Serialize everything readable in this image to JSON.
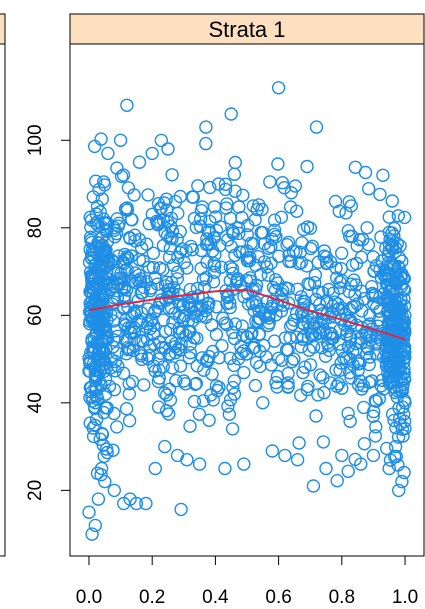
{
  "chart_data": {
    "type": "scatter",
    "panel": {
      "strip_label": "Strata 1",
      "xlim": [
        -0.06,
        1.06
      ],
      "ylim": [
        5,
        122
      ],
      "x_ticks": [
        0.0,
        0.2,
        0.4,
        0.6,
        0.8,
        1.0
      ],
      "x_tick_labels": [
        "0.0",
        "0.2",
        "0.4",
        "0.6",
        "0.8",
        "1.0"
      ],
      "y_ticks": [
        20,
        40,
        60,
        80,
        100
      ],
      "y_tick_labels": [
        "20",
        "40",
        "60",
        "80",
        "100"
      ],
      "grid": false,
      "point_color": "#1f8ee6",
      "smooth_color": "#e3263f",
      "strip_fill": "#fde0c0",
      "smooth_line": {
        "x": [
          0.0,
          0.1,
          0.2,
          0.3,
          0.4,
          0.5,
          0.6,
          0.7,
          0.8,
          0.9,
          1.0
        ],
        "y": [
          61.2,
          62.5,
          63.6,
          64.6,
          65.5,
          65.8,
          63.5,
          61.0,
          59.0,
          56.8,
          54.5
        ]
      },
      "points": {
        "x": [
          0.01,
          0.02,
          0.0,
          0.03,
          0.05,
          0.04,
          0.08,
          0.11,
          0.13,
          0.15,
          0.18,
          0.21,
          0.24,
          0.28,
          0.31,
          0.35,
          0.38,
          0.43,
          0.46,
          0.49,
          0.55,
          0.58,
          0.62,
          0.66,
          0.71,
          0.75,
          0.8,
          0.86,
          0.9,
          0.95,
          0.98,
          0.99,
          0.97,
          0.12,
          0.2,
          0.37,
          0.45,
          0.6,
          0.72,
          0.83,
          0.93,
          0.06,
          0.1,
          0.16,
          0.25,
          0.33,
          0.41,
          0.52,
          0.64,
          0.69,
          0.78,
          0.88,
          0.96,
          0.02,
          0.07,
          0.14,
          0.22,
          0.3,
          0.5,
          0.57,
          0.68,
          0.76,
          0.84,
          0.92
        ],
        "y": [
          10,
          12,
          15,
          18,
          22,
          25,
          20,
          17,
          18,
          17,
          17,
          25,
          30,
          28,
          27,
          26,
          36,
          25,
          42,
          26,
          40,
          29,
          28,
          27,
          21,
          25,
          28,
          26,
          28,
          25,
          20,
          22,
          30,
          108,
          97,
          103,
          106,
          112,
          103,
          85,
          92,
          97,
          100,
          95,
          98,
          87,
          90,
          85,
          88,
          94,
          86,
          80,
          76,
          40,
          48,
          52,
          50,
          45,
          55,
          60,
          58,
          52,
          62,
          64
        ]
      }
    }
  }
}
